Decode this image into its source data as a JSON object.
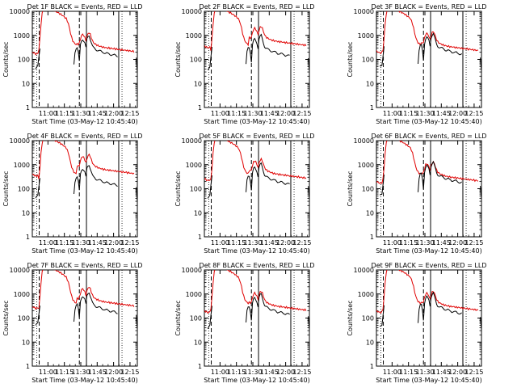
{
  "chart_data": [
    {
      "type": "line",
      "title": "Det 1F BLACK = Events, RED = LLD",
      "ylabel": "Counts/sec",
      "xlabel": "Start Time (03-May-12 10:45:40)",
      "x_tick_labels": [
        "11:00",
        "11:15",
        "11:30",
        "11:45",
        "12:00",
        "12:15"
      ],
      "y_tick_labels": [
        "1",
        "10",
        "100",
        "1000",
        "10000"
      ],
      "y_scale": "log",
      "ylim": [
        1,
        10000
      ],
      "x_ticks_min": [
        14.3,
        29.3,
        44.3,
        59.3,
        74.3,
        89.3
      ],
      "xlim": [
        0,
        96
      ],
      "series": [
        {
          "color": "#000000",
          "x": [
            0,
            2,
            4,
            6,
            7,
            9,
            10,
            14,
            18,
            36,
            37,
            38,
            39,
            40,
            41,
            42,
            43,
            44,
            45,
            46,
            47,
            48,
            49,
            50,
            51,
            52,
            53,
            54,
            55,
            56,
            57,
            58,
            59,
            60,
            61,
            62,
            63,
            64,
            65,
            66,
            67,
            68,
            69,
            70,
            71,
            72,
            73,
            74,
            75,
            76,
            77,
            78,
            79,
            80,
            81,
            82,
            83,
            84,
            85,
            86,
            87,
            88,
            89,
            90,
            91,
            92,
            93,
            94,
            95,
            96
          ],
          "y": [
            null,
            null,
            null,
            null,
            null,
            null,
            null,
            null,
            null,
            null,
            null,
            null,
            null,
            null,
            null,
            null,
            null,
            null,
            null,
            null,
            null,
            null,
            null,
            null,
            null,
            null,
            null,
            null,
            null,
            null,
            null,
            null,
            null,
            null,
            null,
            null,
            null,
            null,
            null,
            null,
            null,
            null,
            null,
            null,
            null,
            null,
            null,
            null,
            null,
            null,
            null,
            null,
            null,
            null,
            null,
            null,
            null,
            null,
            null,
            null,
            null,
            null,
            null,
            null,
            null,
            null,
            null,
            null,
            null,
            null
          ]
        },
        {
          "color": "#e00000",
          "x": [],
          "y": []
        }
      ],
      "annotations": {
        "solid_vlines": [
          0,
          49.5,
          79
        ],
        "dashed_vlines": [
          6.3,
          43
        ],
        "dotted_vlines": [
          4,
          82
        ]
      }
    },
    {
      "type": "line",
      "title": "Det 2F BLACK = Events, RED = LLD",
      "ylabel": "Counts/sec",
      "xlabel": "Start Time (03-May-12 10:45:40)",
      "x_tick_labels": [
        "11:00",
        "11:15",
        "11:30",
        "11:45",
        "12:00",
        "12:15"
      ],
      "y_tick_labels": [
        "1",
        "10",
        "100",
        "1000",
        "10000"
      ],
      "y_scale": "log",
      "ylim": [
        1,
        10000
      ],
      "x_ticks_min": [
        14.3,
        29.3,
        44.3,
        59.3,
        74.3,
        89.3
      ],
      "xlim": [
        0,
        96
      ],
      "series": [],
      "annotations": {
        "solid_vlines": [
          0,
          49.5,
          79
        ],
        "dashed_vlines": [
          6.3,
          43
        ],
        "dotted_vlines": [
          4,
          82
        ]
      }
    },
    {
      "type": "line",
      "title": "Det 3F BLACK = Events, RED = LLD",
      "ylabel": "Counts/sec",
      "xlabel": "Start Time (03-May-12 10:45:40)",
      "x_tick_labels": [
        "11:00",
        "11:15",
        "11:30",
        "11:45",
        "12:00",
        "12:15"
      ],
      "y_tick_labels": [
        "1",
        "10",
        "100",
        "1000",
        "10000"
      ],
      "y_scale": "log",
      "ylim": [
        1,
        10000
      ],
      "x_ticks_min": [
        14.3,
        29.3,
        44.3,
        59.3,
        74.3,
        89.3
      ],
      "xlim": [
        0,
        96
      ],
      "series": [],
      "annotations": {
        "solid_vlines": [
          0,
          49.5,
          79
        ],
        "dashed_vlines": [
          6.3,
          43
        ],
        "dotted_vlines": [
          4,
          82
        ]
      }
    },
    {
      "type": "line",
      "title": "Det 4F BLACK = Events, RED = LLD",
      "ylabel": "Counts/sec",
      "xlabel": "Start Time (03-May-12 10:45:40)",
      "x_tick_labels": [
        "11:00",
        "11:15",
        "11:30",
        "11:45",
        "12:00",
        "12:15"
      ],
      "y_tick_labels": [
        "1",
        "10",
        "100",
        "1000",
        "10000"
      ],
      "y_scale": "log",
      "ylim": [
        1,
        10000
      ],
      "x_ticks_min": [
        14.3,
        29.3,
        44.3,
        59.3,
        74.3,
        89.3
      ],
      "xlim": [
        0,
        96
      ],
      "series": [],
      "annotations": {
        "solid_vlines": [
          0,
          49.5,
          79
        ],
        "dashed_vlines": [
          6.3,
          43
        ],
        "dotted_vlines": [
          4,
          82
        ]
      }
    },
    {
      "type": "line",
      "title": "Det 5F BLACK = Events, RED = LLD",
      "ylabel": "Counts/sec",
      "xlabel": "Start Time (03-May-12 10:45:40)",
      "x_tick_labels": [
        "11:00",
        "11:15",
        "11:30",
        "11:45",
        "12:00",
        "12:15"
      ],
      "y_tick_labels": [
        "1",
        "10",
        "100",
        "1000",
        "10000"
      ],
      "y_scale": "log",
      "ylim": [
        1,
        10000
      ],
      "x_ticks_min": [
        14.3,
        29.3,
        44.3,
        59.3,
        74.3,
        89.3
      ],
      "xlim": [
        0,
        96
      ],
      "series": [],
      "annotations": {
        "solid_vlines": [
          0,
          49.5,
          79
        ],
        "dashed_vlines": [
          6.3,
          43
        ],
        "dotted_vlines": [
          4,
          82
        ]
      }
    },
    {
      "type": "line",
      "title": "Det 6F BLACK = Events, RED = LLD",
      "ylabel": "Counts/sec",
      "xlabel": "Start Time (03-May-12 10:45:40)",
      "x_tick_labels": [
        "11:00",
        "11:15",
        "11:30",
        "11:45",
        "12:00",
        "12:15"
      ],
      "y_tick_labels": [
        "1",
        "10",
        "100",
        "1000",
        "10000"
      ],
      "y_scale": "log",
      "ylim": [
        1,
        10000
      ],
      "x_ticks_min": [
        14.3,
        29.3,
        44.3,
        59.3,
        74.3,
        89.3
      ],
      "xlim": [
        0,
        96
      ],
      "series": [],
      "annotations": {
        "solid_vlines": [
          0,
          49.5,
          79
        ],
        "dashed_vlines": [
          6.3,
          43
        ],
        "dotted_vlines": [
          4,
          82
        ]
      }
    },
    {
      "type": "line",
      "title": "Det 7F BLACK = Events, RED = LLD",
      "ylabel": "Counts/sec",
      "xlabel": "Start Time (03-May-12 10:45:40)",
      "x_tick_labels": [
        "11:00",
        "11:15",
        "11:30",
        "11:45",
        "12:00",
        "12:15"
      ],
      "y_tick_labels": [
        "1",
        "10",
        "100",
        "1000",
        "10000"
      ],
      "y_scale": "log",
      "ylim": [
        1,
        10000
      ],
      "x_ticks_min": [
        14.3,
        29.3,
        44.3,
        59.3,
        74.3,
        89.3
      ],
      "xlim": [
        0,
        96
      ],
      "series": [],
      "annotations": {
        "solid_vlines": [
          0,
          49.5,
          79
        ],
        "dashed_vlines": [
          6.3,
          43
        ],
        "dotted_vlines": [
          4,
          82
        ]
      }
    },
    {
      "type": "line",
      "title": "Det 8F BLACK = Events, RED = LLD",
      "ylabel": "Counts/sec",
      "xlabel": "Start Time (03-May-12 10:45:40)",
      "x_tick_labels": [
        "11:00",
        "11:15",
        "11:30",
        "11:45",
        "12:00",
        "12:15"
      ],
      "y_tick_labels": [
        "1",
        "10",
        "100",
        "1000",
        "10000"
      ],
      "y_scale": "log",
      "ylim": [
        1,
        10000
      ],
      "x_ticks_min": [
        14.3,
        29.3,
        44.3,
        59.3,
        74.3,
        89.3
      ],
      "xlim": [
        0,
        96
      ],
      "series": [],
      "annotations": {
        "solid_vlines": [
          0,
          49.5,
          79
        ],
        "dashed_vlines": [
          6.3,
          43
        ],
        "dotted_vlines": [
          4,
          82
        ]
      }
    },
    {
      "type": "line",
      "title": "Det 9F BLACK = Events, RED = LLD",
      "ylabel": "Counts/sec",
      "xlabel": "Start Time (03-May-12 10:45:40)",
      "x_tick_labels": [
        "11:00",
        "11:15",
        "11:30",
        "11:45",
        "12:00",
        "12:15"
      ],
      "y_tick_labels": [
        "1",
        "10",
        "100",
        "1000",
        "10000"
      ],
      "y_scale": "log",
      "ylim": [
        1,
        10000
      ],
      "x_ticks_min": [
        14.3,
        29.3,
        44.3,
        59.3,
        74.3,
        89.3
      ],
      "xlim": [
        0,
        96
      ],
      "series": [],
      "annotations": {
        "solid_vlines": [
          0,
          49.5,
          79
        ],
        "dashed_vlines": [
          6.3,
          43
        ],
        "dotted_vlines": [
          4,
          82
        ]
      }
    }
  ],
  "series_profiles": {
    "black": [
      [
        2,
        null
      ],
      [
        3,
        40
      ],
      [
        4,
        45
      ],
      [
        5,
        50
      ],
      [
        6,
        120
      ],
      [
        7,
        300
      ],
      [
        8,
        null
      ],
      [
        36,
        null
      ],
      [
        38,
        60
      ],
      [
        39,
        200
      ],
      [
        40,
        300
      ],
      [
        41,
        320
      ],
      [
        42,
        200
      ],
      [
        43,
        80
      ],
      [
        44,
        400
      ],
      [
        45,
        600
      ],
      [
        46,
        700
      ],
      [
        47,
        600
      ],
      [
        48,
        500
      ],
      [
        49,
        300
      ],
      [
        50,
        700
      ],
      [
        51,
        900
      ],
      [
        52,
        1000
      ],
      [
        53,
        700
      ],
      [
        54,
        500
      ],
      [
        55,
        350
      ],
      [
        56,
        300
      ],
      [
        57,
        280
      ],
      [
        58,
        260
      ],
      [
        59,
        250
      ],
      [
        60,
        240
      ],
      [
        61,
        230
      ],
      [
        62,
        220
      ],
      [
        63,
        210
      ],
      [
        64,
        200
      ],
      [
        65,
        200
      ],
      [
        66,
        190
      ],
      [
        67,
        180
      ],
      [
        68,
        180
      ],
      [
        69,
        170
      ],
      [
        70,
        170
      ],
      [
        71,
        165
      ],
      [
        72,
        160
      ],
      [
        73,
        160
      ],
      [
        74,
        150
      ],
      [
        75,
        150
      ],
      [
        76,
        145
      ],
      [
        77,
        140
      ],
      [
        78,
        140
      ],
      [
        79,
        null
      ],
      [
        94,
        null
      ],
      [
        95,
        110
      ],
      [
        96,
        30
      ]
    ],
    "red": [
      [
        0,
        200
      ],
      [
        1,
        190
      ],
      [
        2,
        180
      ],
      [
        3,
        170
      ],
      [
        4,
        170
      ],
      [
        5,
        180
      ],
      [
        6,
        250
      ],
      [
        7,
        800
      ],
      [
        8,
        3000
      ],
      [
        9,
        8000
      ],
      [
        10,
        12000
      ],
      [
        11,
        14000
      ],
      [
        12,
        14000
      ],
      [
        13,
        12000
      ],
      [
        14,
        11000
      ],
      [
        15,
        12000
      ],
      [
        16,
        14000
      ],
      [
        17,
        14000
      ],
      [
        18,
        13000
      ],
      [
        19,
        12000
      ],
      [
        20,
        11000
      ],
      [
        21,
        10000
      ],
      [
        22,
        9500
      ],
      [
        23,
        9000
      ],
      [
        24,
        8500
      ],
      [
        25,
        8000
      ],
      [
        26,
        7500
      ],
      [
        27,
        7000
      ],
      [
        28,
        6500
      ],
      [
        29,
        6000
      ],
      [
        30,
        5500
      ],
      [
        31,
        5000
      ],
      [
        32,
        4000
      ],
      [
        33,
        3000
      ],
      [
        34,
        2000
      ],
      [
        35,
        1200
      ],
      [
        36,
        800
      ],
      [
        37,
        600
      ],
      [
        38,
        500
      ],
      [
        39,
        450
      ],
      [
        40,
        420
      ],
      [
        41,
        440
      ],
      [
        42,
        430
      ],
      [
        43,
        480
      ],
      [
        44,
        700
      ],
      [
        45,
        1000
      ],
      [
        46,
        1100
      ],
      [
        47,
        1000
      ],
      [
        48,
        800
      ],
      [
        49,
        600
      ],
      [
        50,
        900
      ],
      [
        51,
        1200
      ],
      [
        52,
        1300
      ],
      [
        53,
        1100
      ],
      [
        54,
        800
      ],
      [
        55,
        600
      ],
      [
        56,
        500
      ],
      [
        57,
        450
      ],
      [
        58,
        420
      ],
      [
        59,
        400
      ],
      [
        60,
        380
      ],
      [
        61,
        360
      ],
      [
        62,
        350
      ],
      [
        63,
        340
      ],
      [
        64,
        330
      ],
      [
        65,
        320
      ],
      [
        66,
        320
      ],
      [
        67,
        310
      ],
      [
        68,
        300
      ],
      [
        69,
        300
      ],
      [
        70,
        300
      ],
      [
        71,
        290
      ],
      [
        72,
        290
      ],
      [
        73,
        280
      ],
      [
        74,
        280
      ],
      [
        75,
        280
      ],
      [
        76,
        270
      ],
      [
        77,
        270
      ],
      [
        78,
        260
      ],
      [
        79,
        260
      ],
      [
        80,
        260
      ],
      [
        81,
        250
      ],
      [
        82,
        250
      ],
      [
        83,
        250
      ],
      [
        84,
        240
      ],
      [
        85,
        240
      ],
      [
        86,
        240
      ],
      [
        87,
        230
      ],
      [
        88,
        230
      ],
      [
        89,
        230
      ],
      [
        90,
        220
      ],
      [
        91,
        220
      ],
      [
        92,
        220
      ],
      [
        93,
        210
      ]
    ]
  }
}
